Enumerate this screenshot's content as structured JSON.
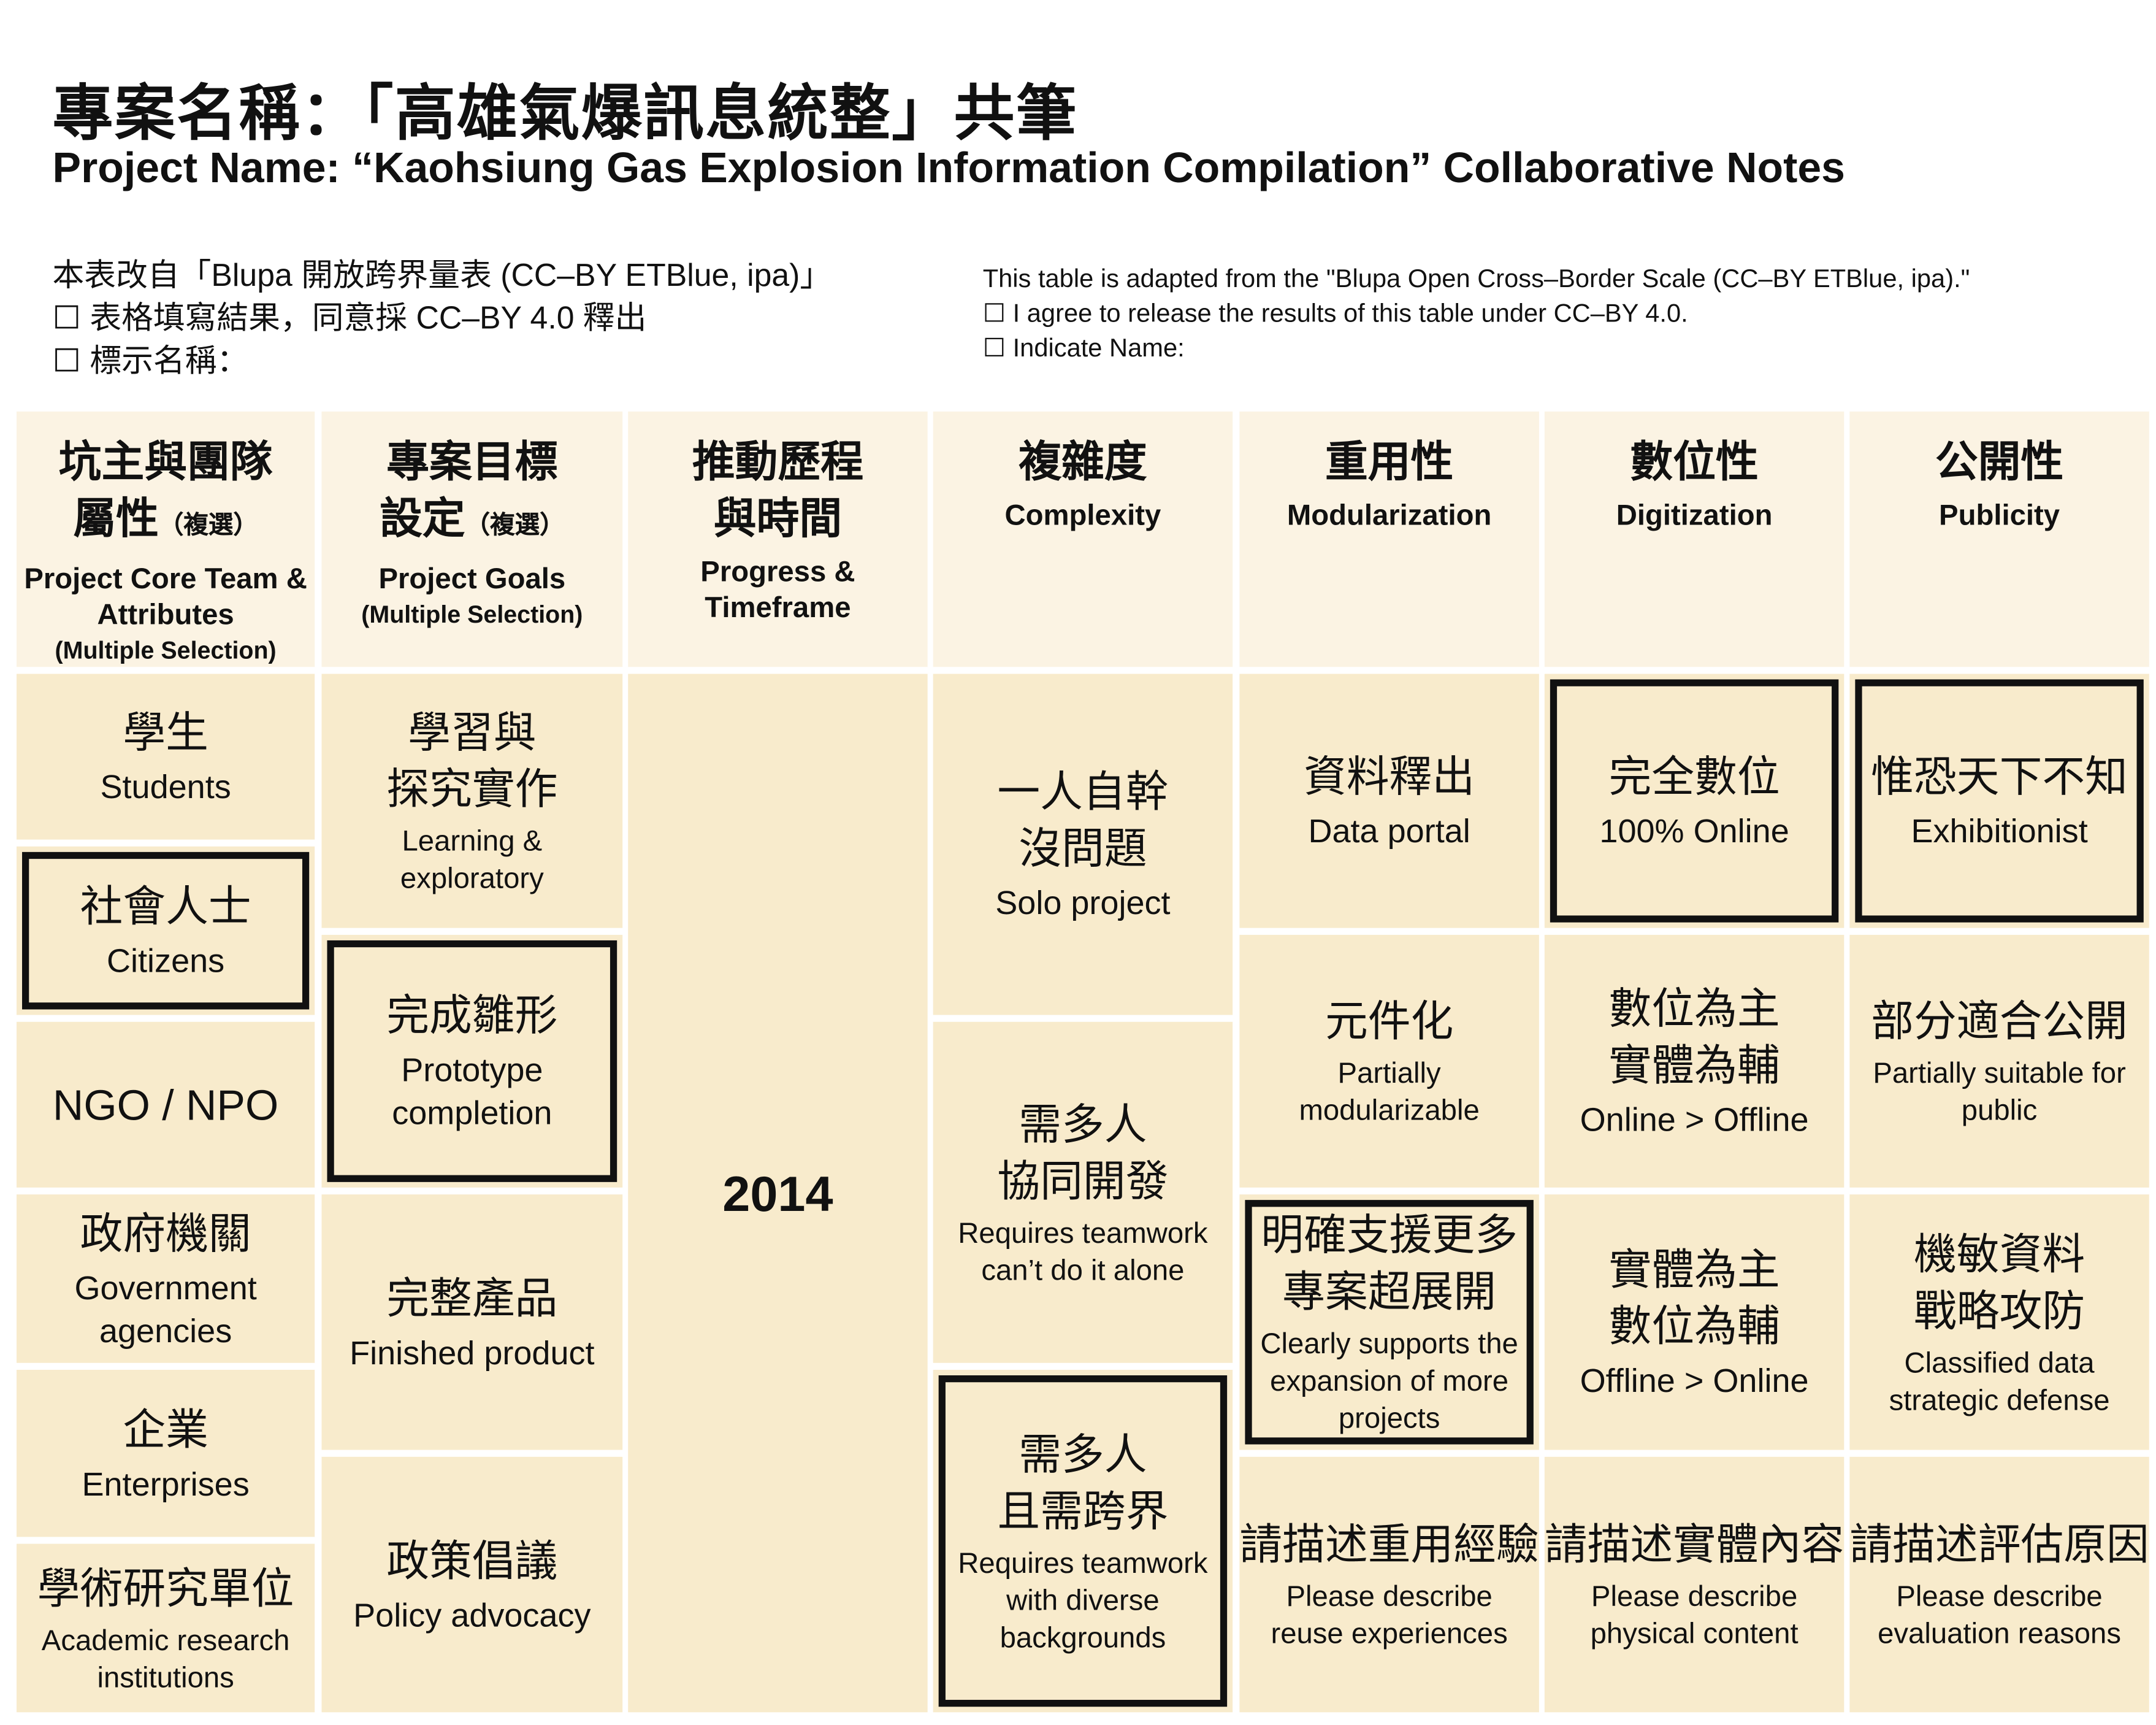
{
  "title_zh": "專案名稱：「高雄氣爆訊息統整」共筆",
  "title_en": "Project Name: “Kaohsiung Gas Explosion Information Compilation” Collaborative Notes",
  "notes_zh": [
    "本表改自「Blupa 開放跨界量表 (CC–BY ETBlue, ipa)」",
    "☐ 表格填寫結果，同意採 CC–BY 4.0 釋出",
    "☐ 標示名稱："
  ],
  "notes_en": [
    "This table is adapted from the \"Blupa Open Cross–Border Scale (CC–BY ETBlue, ipa).\"",
    "☐ I agree to release the results of this table under CC–BY 4.0.",
    "☐ Indicate Name:"
  ],
  "colors": {
    "header_bg": "#fbf3e3",
    "cell_bg": "#f8ebcc",
    "selected_border": "#111111"
  },
  "columns": [
    {
      "header": {
        "zh": "坑主與團隊",
        "zh2": "屬性",
        "tag": "（複選）",
        "en": "Project Core Team & Attributes",
        "sub": "(Multiple Selection)"
      },
      "cells": [
        {
          "zh": "學生",
          "en": "Students",
          "selected": false
        },
        {
          "zh": "社會人士",
          "en": "Citizens",
          "selected": true
        },
        {
          "zh": "NGO / NPO",
          "en": "",
          "selected": false
        },
        {
          "zh": "政府機關",
          "en": "Government agencies",
          "selected": false
        },
        {
          "zh": "企業",
          "en": "Enterprises",
          "selected": false
        },
        {
          "zh": "學術研究單位",
          "en": "Academic research institutions",
          "selected": false
        }
      ]
    },
    {
      "header": {
        "zh": "專案目標",
        "zh2": "設定",
        "tag": "（複選）",
        "en": "Project Goals",
        "sub": "(Multiple Selection)"
      },
      "cells": [
        {
          "zh": "學習與 探究實作",
          "en": "Learning & exploratory",
          "selected": false
        },
        {
          "zh": "完成雛形",
          "en": "Prototype completion",
          "selected": true
        },
        {
          "zh": "完整產品",
          "en": "Finished product",
          "selected": false
        },
        {
          "zh": "政策倡議",
          "en": "Policy advocacy",
          "selected": false
        }
      ]
    },
    {
      "header": {
        "zh": "推動歷程",
        "zh2": "與時間",
        "tag": "",
        "en": "Progress & Timeframe",
        "sub": ""
      },
      "cells": [
        {
          "zh": "2014",
          "en": "",
          "selected": false
        }
      ]
    },
    {
      "header": {
        "zh": "複雜度",
        "zh2": "",
        "tag": "",
        "en": "Complexity",
        "sub": ""
      },
      "cells": [
        {
          "zh": "一人自幹 沒問題",
          "en": "Solo project",
          "selected": false
        },
        {
          "zh": "需多人 協同開發",
          "en": "Requires teamwork can’t do it alone",
          "selected": false
        },
        {
          "zh": "需多人 且需跨界",
          "en": "Requires teamwork with diverse backgrounds",
          "selected": true
        }
      ]
    },
    {
      "header": {
        "zh": "重用性",
        "zh2": "",
        "tag": "",
        "en": "Modularization",
        "sub": ""
      },
      "cells": [
        {
          "zh": "資料釋出",
          "en": "Data portal",
          "selected": false
        },
        {
          "zh": "元件化",
          "en": "Partially modularizable",
          "selected": false
        },
        {
          "zh": "明確支援更多 專案超展開",
          "en": "Clearly supports the expansion of more projects",
          "selected": true
        },
        {
          "zh": "請描述重用經驗",
          "en": "Please describe reuse experiences",
          "selected": false
        }
      ]
    },
    {
      "header": {
        "zh": "數位性",
        "zh2": "",
        "tag": "",
        "en": "Digitization",
        "sub": ""
      },
      "cells": [
        {
          "zh": "完全數位",
          "en": "100% Online",
          "selected": true
        },
        {
          "zh": "數位為主 實體為輔",
          "en": "Online > Offline",
          "selected": false
        },
        {
          "zh": "實體為主 數位為輔",
          "en": "Offline > Online",
          "selected": false
        },
        {
          "zh": "請描述實體內容",
          "en": "Please describe physical content",
          "selected": false
        }
      ]
    },
    {
      "header": {
        "zh": "公開性",
        "zh2": "",
        "tag": "",
        "en": "Publicity",
        "sub": ""
      },
      "cells": [
        {
          "zh": "惟恐天下不知",
          "en": "Exhibitionist",
          "selected": true
        },
        {
          "zh": "部分適合公開",
          "en": "Partially suitable for public",
          "selected": false
        },
        {
          "zh": "機敏資料 戰略攻防",
          "en": "Classified data strategic defense",
          "selected": false
        },
        {
          "zh": "請描述評估原因",
          "en": "Please describe evaluation reasons",
          "selected": false
        }
      ]
    }
  ]
}
